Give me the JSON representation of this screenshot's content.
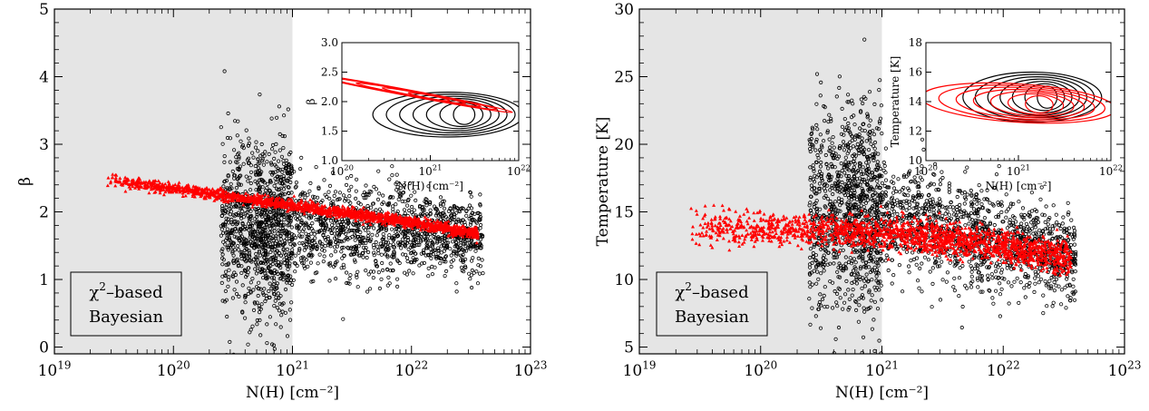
{
  "chart_data": [
    {
      "type": "scatter",
      "xlabel": "N(H) [cm⁻²]",
      "ylabel": "β",
      "xscale": "log",
      "xlim": [
        1e+19,
        1e+23
      ],
      "ylim": [
        -0.1,
        5.0
      ],
      "xticks": [
        {
          "v": 1e+19,
          "base": "10",
          "exp": "19"
        },
        {
          "v": 1e+20,
          "base": "10",
          "exp": "20"
        },
        {
          "v": 1e+21,
          "base": "10",
          "exp": "21"
        },
        {
          "v": 1e+22,
          "base": "10",
          "exp": "22"
        },
        {
          "v": 1e+23,
          "base": "10",
          "exp": "23"
        }
      ],
      "yticks": [
        0,
        1,
        2,
        3,
        4,
        5
      ],
      "shaded_region": {
        "x": [
          1e+19,
          1e+21
        ],
        "color": "#e5e5e5"
      },
      "legend": {
        "placement": "lower-left",
        "entries": [
          {
            "label_pre": "χ",
            "label_sup": "2",
            "label_post": "–based",
            "color": "#000000"
          },
          {
            "label": "Bayesian",
            "color": "#ff0000"
          }
        ]
      },
      "series": [
        {
          "name": "χ²–based",
          "marker": "open-circle",
          "color": "#000000",
          "trend": {
            "logx": [
              20.4,
              21.0,
              21.6,
              22.6
            ],
            "y": [
              1.8,
              1.8,
              1.75,
              1.6
            ]
          },
          "logx_range": [
            20.4,
            22.6
          ],
          "spread": 0.35,
          "count": 2300
        },
        {
          "name": "Bayesian",
          "marker": "triangle",
          "color": "#ff0000",
          "trend": {
            "logx": [
              19.42,
              20.0,
              21.0,
              22.0,
              22.56
            ],
            "y": [
              2.48,
              2.35,
              2.1,
              1.85,
              1.68
            ]
          },
          "logx_range": [
            19.42,
            22.56
          ],
          "spread": 0.04,
          "count": 1800
        }
      ],
      "inset": {
        "type": "contour",
        "xlabel": "N(H) [cm⁻²]",
        "ylabel": "β",
        "xlim": [
          1e+20,
          1e+22
        ],
        "ylim": [
          1.0,
          3.0
        ],
        "xticks": [
          {
            "v": 1e+20,
            "base": "10",
            "exp": "20"
          },
          {
            "v": 1e+21,
            "base": "10",
            "exp": "21"
          },
          {
            "v": 1e+22,
            "base": "10",
            "exp": "22"
          }
        ],
        "yticks": [
          1.0,
          1.5,
          2.0,
          2.5,
          3.0
        ],
        "contours": [
          {
            "color": "#000000",
            "center": [
              21.2,
              1.78
            ],
            "radii": [
              0.85,
              0.38
            ],
            "levels": 7
          },
          {
            "color": "#ff0000",
            "center": [
              20.75,
              2.15
            ],
            "radii": [
              1.2,
              0.05
            ],
            "slope": -0.28,
            "levels": 5
          }
        ]
      }
    },
    {
      "type": "scatter",
      "xlabel": "N(H) [cm⁻²]",
      "ylabel": "Temperature [K]",
      "xscale": "log",
      "xlim": [
        1e+19,
        1e+23
      ],
      "ylim": [
        4.5,
        30
      ],
      "xticks": [
        {
          "v": 1e+19,
          "base": "10",
          "exp": "19"
        },
        {
          "v": 1e+20,
          "base": "10",
          "exp": "20"
        },
        {
          "v": 1e+21,
          "base": "10",
          "exp": "21"
        },
        {
          "v": 1e+22,
          "base": "10",
          "exp": "22"
        },
        {
          "v": 1e+23,
          "base": "10",
          "exp": "23"
        }
      ],
      "yticks": [
        5,
        10,
        15,
        20,
        25,
        30
      ],
      "shaded_region": {
        "x": [
          1e+19,
          1e+21
        ],
        "color": "#e5e5e5"
      },
      "legend": {
        "placement": "lower-left",
        "entries": [
          {
            "label_pre": "χ",
            "label_sup": "2",
            "label_post": "–based",
            "color": "#000000"
          },
          {
            "label": "Bayesian",
            "color": "#ff0000"
          }
        ]
      },
      "series": [
        {
          "name": "χ²–based",
          "marker": "open-circle",
          "color": "#000000",
          "trend": {
            "logx": [
              20.4,
              20.7,
              21.2,
              22.0,
              22.6
            ],
            "y": [
              14.5,
              15.5,
              14.5,
              12.8,
              11.5
            ]
          },
          "logx_range": [
            20.4,
            22.6
          ],
          "spread": 2.0,
          "count": 2300
        },
        {
          "name": "Bayesian",
          "marker": "triangle",
          "color": "#ff0000",
          "trend": {
            "logx": [
              19.42,
              20.0,
              21.0,
              22.0,
              22.56
            ],
            "y": [
              14.0,
              13.8,
              13.5,
              12.5,
              11.6
            ]
          },
          "logx_range": [
            19.42,
            22.56
          ],
          "spread": 0.6,
          "count": 1800
        }
      ],
      "inset": {
        "type": "contour",
        "xlabel": "N(H) [cm⁻²]",
        "ylabel": "Temperature [K]",
        "xlim": [
          1e+20,
          1e+22
        ],
        "ylim": [
          10,
          18
        ],
        "xticks": [
          {
            "v": 1e+20,
            "base": "10",
            "exp": "20"
          },
          {
            "v": 1e+21,
            "base": "10",
            "exp": "21"
          },
          {
            "v": 1e+22,
            "base": "10",
            "exp": "22"
          }
        ],
        "yticks": [
          10,
          12,
          14,
          16,
          18
        ],
        "contours": [
          {
            "color": "#000000",
            "center": [
              21.15,
              14.3
            ],
            "radii": [
              0.75,
              1.7
            ],
            "levels": 7
          },
          {
            "color": "#ff0000",
            "center": [
              21.0,
              13.9
            ],
            "radii": [
              1.05,
              1.3
            ],
            "slope": -0.4,
            "levels": 7
          }
        ]
      }
    }
  ]
}
